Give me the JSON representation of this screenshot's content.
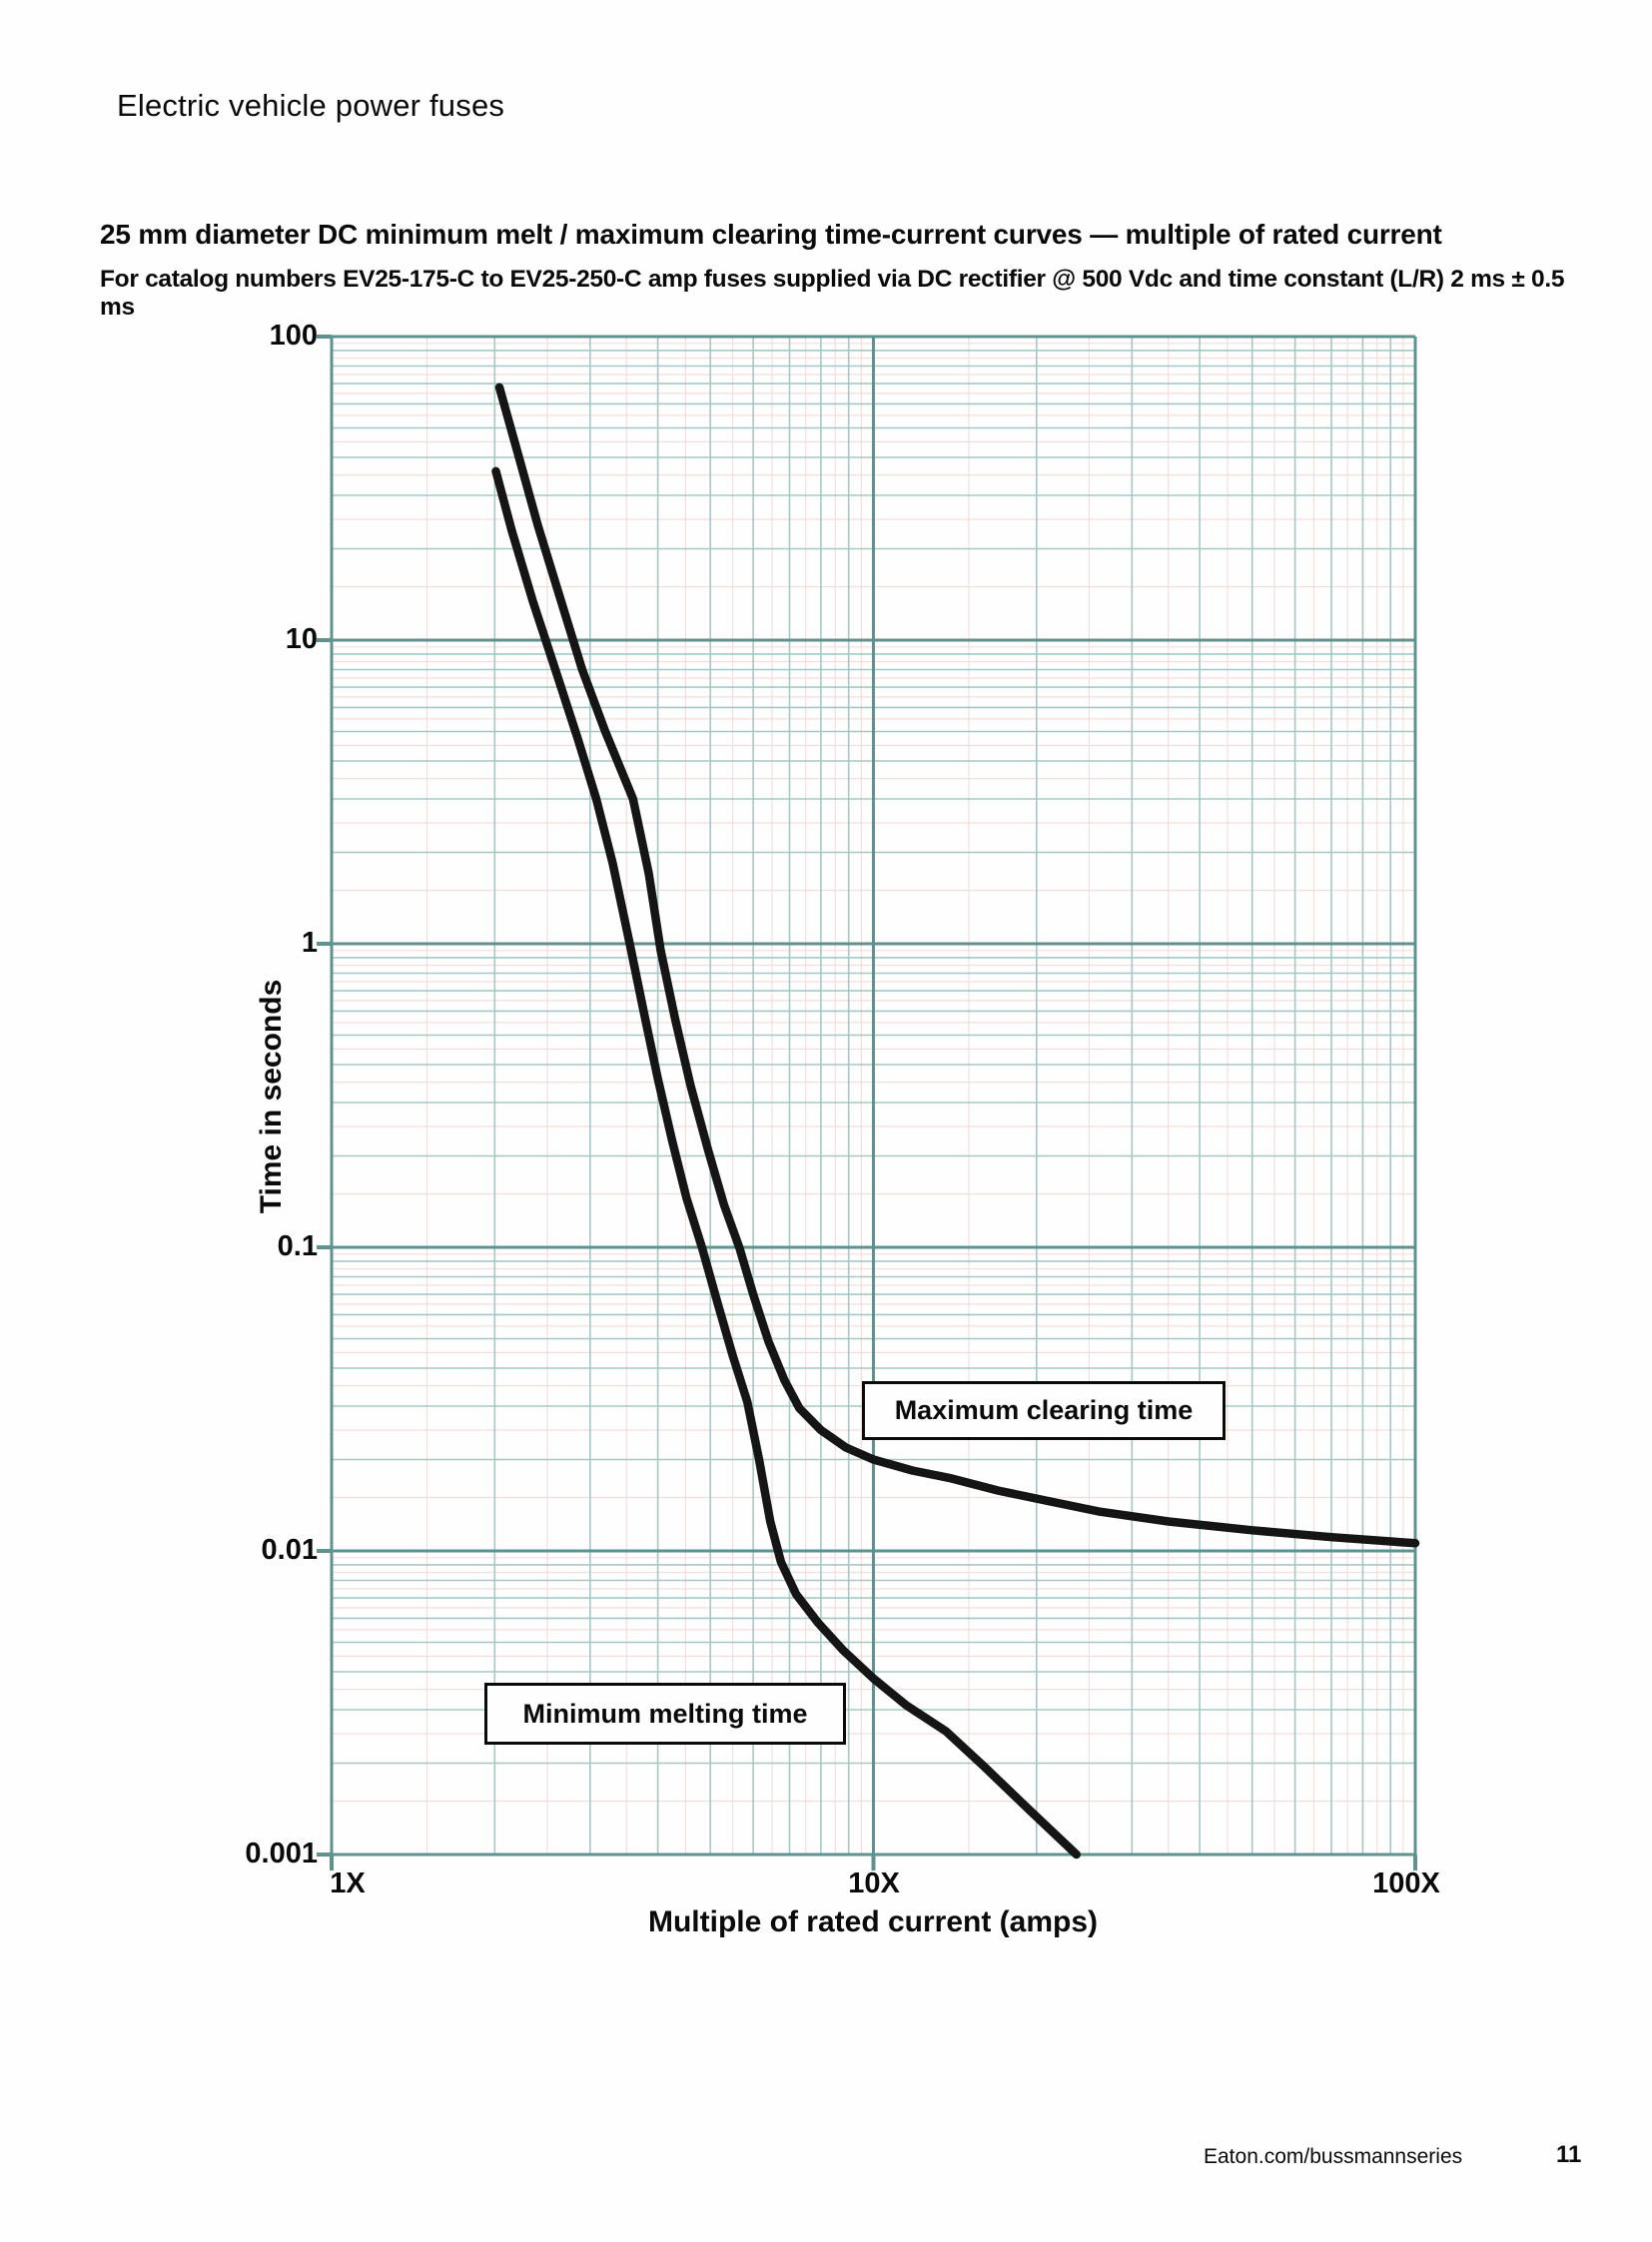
{
  "page": {
    "header": "Electric vehicle power fuses",
    "footer_url": "Eaton.com/bussmannseries",
    "page_number": "11"
  },
  "chart": {
    "title": "25 mm diameter DC minimum melt / maximum clearing time-current curves — multiple of rated current",
    "subtitle": "For catalog numbers EV25-175-C to EV25-250-C amp fuses supplied via DC rectifier @ 500 Vdc and time constant (L/R) 2 ms ± 0.5 ms",
    "ylabel": "Time in seconds",
    "xlabel": "Multiple of rated current (amps)",
    "y_ticks": [
      "100",
      "10",
      "1",
      "0.1",
      "0.01",
      "0.001"
    ],
    "x_ticks": [
      "1X",
      "10X",
      "100X"
    ],
    "labels": {
      "max": "Maximum clearing time",
      "min": "Minimum melting time"
    },
    "colors": {
      "grid_major": "#5f928f",
      "grid_minor": "#a5c8c5",
      "grid_fine": "#f3dedc",
      "curve": "#151515"
    }
  },
  "chart_data": {
    "type": "line",
    "x_scale": "log",
    "y_scale": "log",
    "xlim": [
      1,
      100
    ],
    "ylim": [
      0.001,
      100
    ],
    "grid": "on",
    "title": "25 mm diameter DC minimum melt / maximum clearing time-current curves — multiple of rated current",
    "xlabel": "Multiple of rated current (amps)",
    "ylabel": "Time in seconds",
    "series": [
      {
        "name": "Maximum clearing time",
        "points": [
          [
            2.04,
            68
          ],
          [
            2.2,
            42
          ],
          [
            2.4,
            24
          ],
          [
            2.65,
            13.5
          ],
          [
            2.9,
            8.0
          ],
          [
            3.2,
            5.0
          ],
          [
            3.6,
            3.0
          ],
          [
            3.85,
            1.7
          ],
          [
            4.05,
            0.95
          ],
          [
            4.3,
            0.57
          ],
          [
            4.6,
            0.34
          ],
          [
            4.95,
            0.21
          ],
          [
            5.3,
            0.138
          ],
          [
            5.66,
            0.0995
          ],
          [
            6.0,
            0.07
          ],
          [
            6.4,
            0.049
          ],
          [
            6.85,
            0.0365
          ],
          [
            7.3,
            0.0295
          ],
          [
            8.0,
            0.025
          ],
          [
            8.9,
            0.0219
          ],
          [
            10,
            0.02
          ],
          [
            11.8,
            0.0184
          ],
          [
            13.8,
            0.0174
          ],
          [
            17,
            0.0158
          ],
          [
            21,
            0.0146
          ],
          [
            26,
            0.0135
          ],
          [
            35,
            0.0125
          ],
          [
            50,
            0.0117
          ],
          [
            70,
            0.0111
          ],
          [
            100,
            0.0106
          ]
        ]
      },
      {
        "name": "Minimum melting time",
        "points": [
          [
            2.01,
            36
          ],
          [
            2.15,
            23
          ],
          [
            2.35,
            13.5
          ],
          [
            2.6,
            7.8
          ],
          [
            2.85,
            4.7
          ],
          [
            3.08,
            3.0
          ],
          [
            3.3,
            1.85
          ],
          [
            3.55,
            1.0
          ],
          [
            3.78,
            0.58
          ],
          [
            4.0,
            0.36
          ],
          [
            4.25,
            0.225
          ],
          [
            4.52,
            0.145
          ],
          [
            4.83,
            0.0995
          ],
          [
            5.15,
            0.066
          ],
          [
            5.5,
            0.044
          ],
          [
            5.85,
            0.031
          ],
          [
            6.15,
            0.02
          ],
          [
            6.45,
            0.0125
          ],
          [
            6.75,
            0.0092
          ],
          [
            7.2,
            0.0072
          ],
          [
            7.9,
            0.0058
          ],
          [
            8.8,
            0.0047
          ],
          [
            10,
            0.0038
          ],
          [
            11.5,
            0.0031
          ],
          [
            13.6,
            0.00255
          ],
          [
            16,
            0.00195
          ],
          [
            19.5,
            0.00139
          ],
          [
            23.7,
            0.001
          ]
        ]
      }
    ]
  }
}
